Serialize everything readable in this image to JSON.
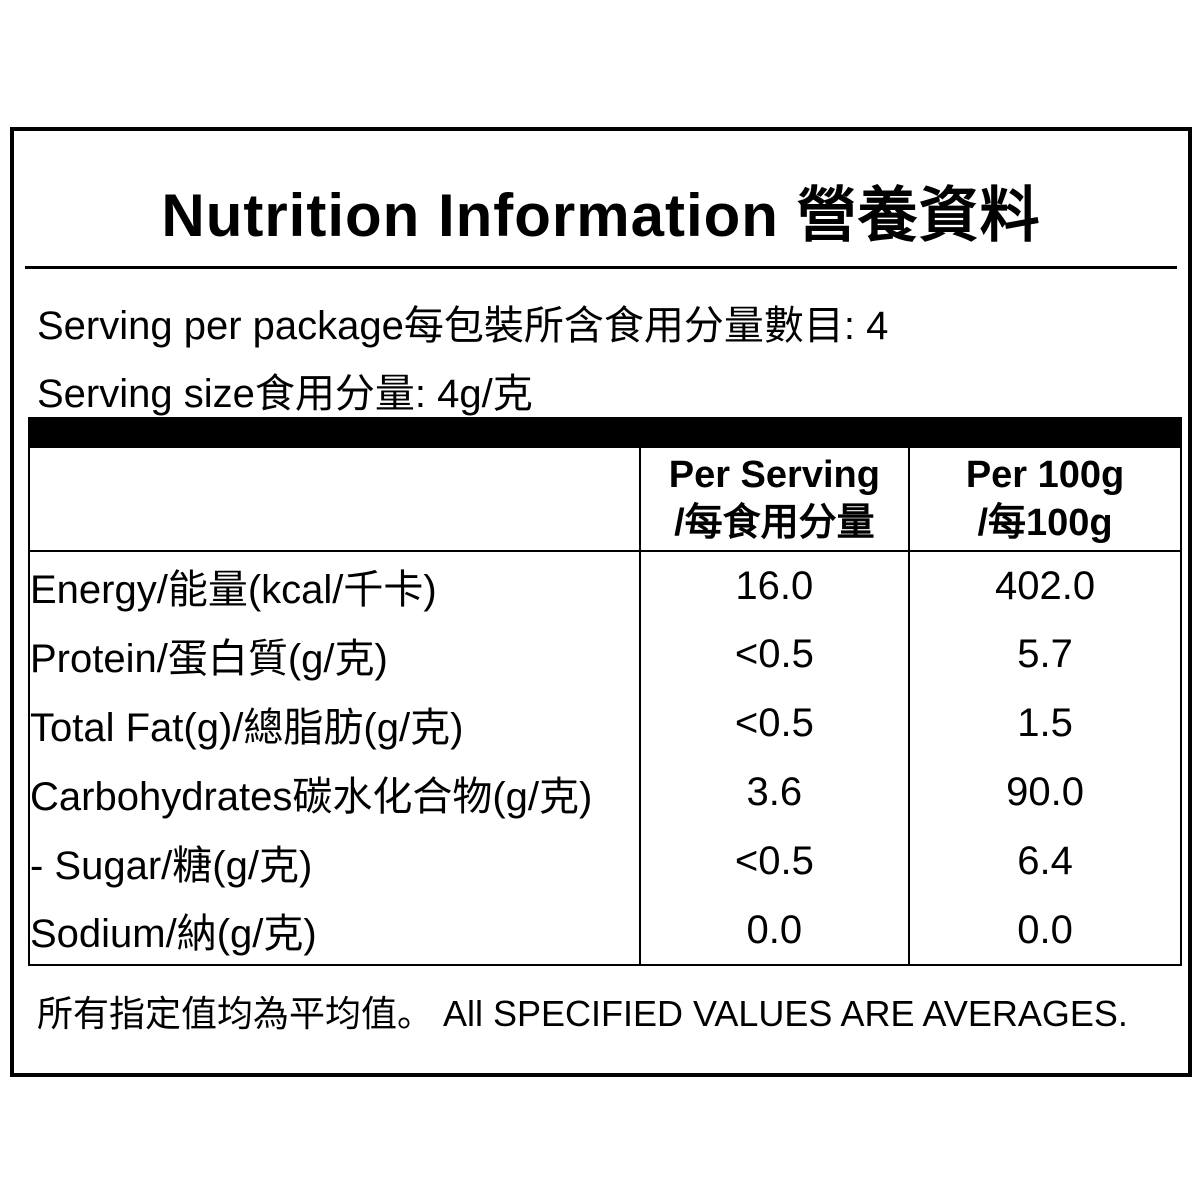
{
  "page": {
    "background_color": "#ffffff",
    "border_color": "#000000",
    "text_color": "#000000"
  },
  "title": "Nutrition Information 營養資料",
  "serving_info": {
    "per_package": "Serving per package每包裝所含食用分量數目: 4",
    "size": "Serving size食用分量: 4g/克"
  },
  "table": {
    "header": {
      "item_label": "",
      "per_serving_en": "Per Serving",
      "per_serving_zh": "/每食用分量",
      "per_100g_en": "Per 100g",
      "per_100g_zh": "/每100g"
    },
    "rows": [
      {
        "name": "Energy/能量(kcal/千卡)",
        "per_serving": "16.0",
        "per_100g": "402.0"
      },
      {
        "name": "Protein/蛋白質(g/克)",
        "per_serving": "<0.5",
        "per_100g": "5.7"
      },
      {
        "name": "Total Fat(g)/總脂肪(g/克)",
        "per_serving": "<0.5",
        "per_100g": "1.5"
      },
      {
        "name": "Carbohydrates碳水化合物(g/克)",
        "per_serving": "3.6",
        "per_100g": "90.0"
      },
      {
        "name": "- Sugar/糖(g/克)",
        "per_serving": "<0.5",
        "per_100g": "6.4"
      },
      {
        "name": "Sodium/納(g/克)",
        "per_serving": "0.0",
        "per_100g": "0.0"
      }
    ]
  },
  "footer": "所有指定值均為平均值。 All SPECIFIED VALUES ARE AVERAGES."
}
